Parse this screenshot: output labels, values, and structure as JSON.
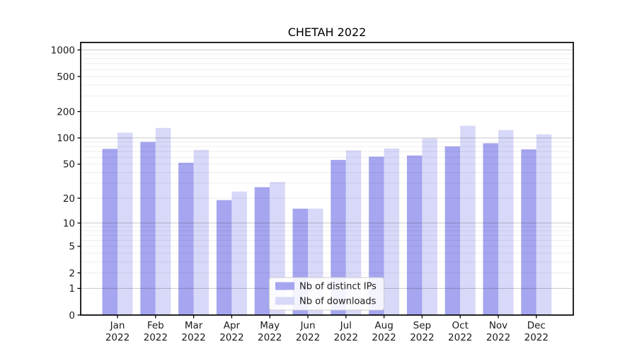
{
  "title": "CHETAH 2022",
  "chart_data": {
    "type": "bar",
    "title": "CHETAH 2022",
    "xlabel": "",
    "ylabel": "",
    "months": [
      "Jan",
      "Feb",
      "Mar",
      "Apr",
      "May",
      "Jun",
      "Jul",
      "Aug",
      "Sep",
      "Oct",
      "Nov",
      "Dec"
    ],
    "year": "2022",
    "categories": [
      "Jan 2022",
      "Feb 2022",
      "Mar 2022",
      "Apr 2022",
      "May 2022",
      "Jun 2022",
      "Jul 2022",
      "Aug 2022",
      "Sep 2022",
      "Oct 2022",
      "Nov 2022",
      "Dec 2022"
    ],
    "series": [
      {
        "name": "Nb of distinct IPs",
        "color": "#a5a5f0",
        "values": [
          75,
          90,
          52,
          19,
          27,
          15,
          56,
          61,
          63,
          80,
          87,
          74
        ]
      },
      {
        "name": "Nb of downloads",
        "color": "#d8d8f8",
        "values": [
          115,
          130,
          73,
          24,
          31,
          15,
          72,
          76,
          99,
          138,
          123,
          110
        ]
      }
    ],
    "y_ticks": [
      0,
      1,
      2,
      5,
      10,
      20,
      50,
      100,
      200,
      500,
      1000
    ],
    "y_scale": "log1p",
    "ylim": [
      0,
      1200
    ],
    "grid": true,
    "grid_major_values": [
      1,
      10,
      100,
      1000
    ],
    "legend_position": "lower center",
    "colors": {
      "bar_dark": "#a5a5f0",
      "bar_light": "#d8d8f8",
      "spine": "#000000",
      "text": "#1a1a1a",
      "legend_border": "#cccccc"
    }
  }
}
